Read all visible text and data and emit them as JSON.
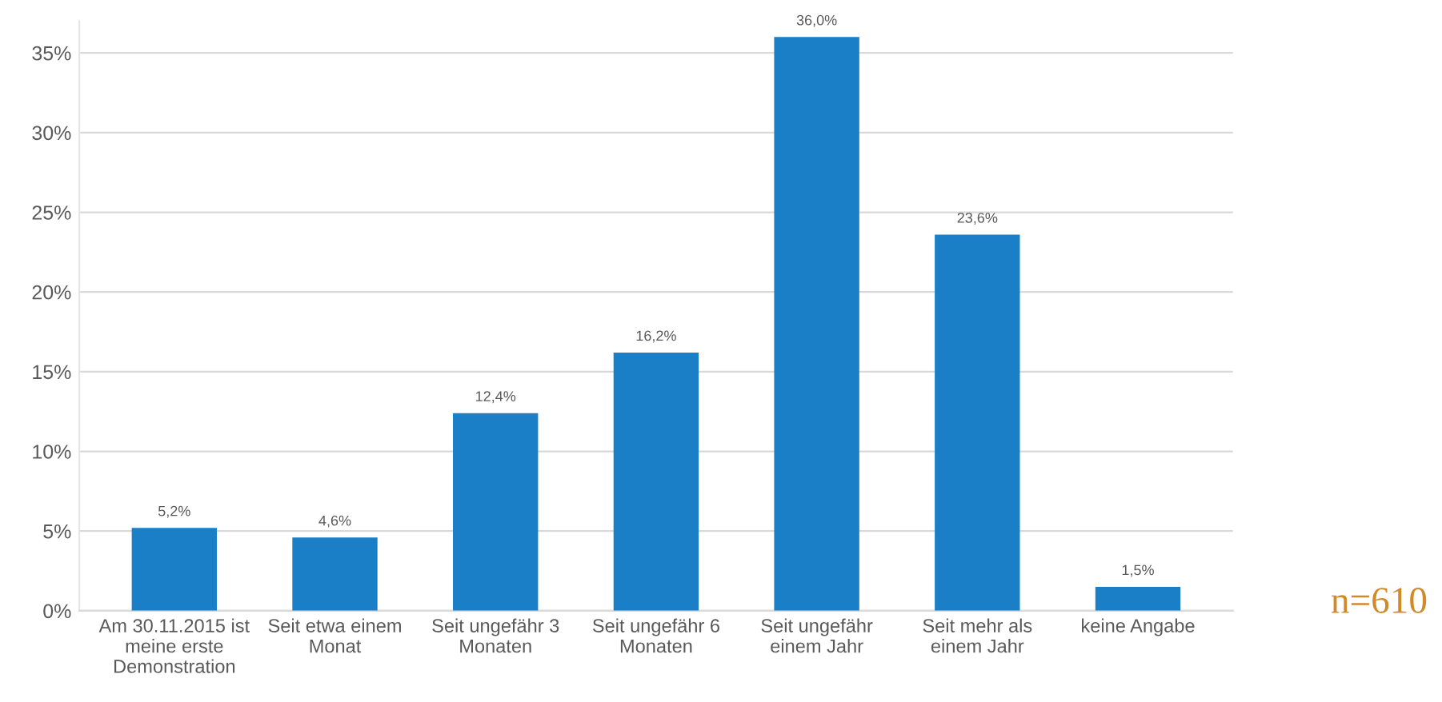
{
  "chart_data": {
    "type": "bar",
    "categories": [
      "Am 30.11.2015 ist\nmeine erste\nDemonstration",
      "Seit etwa einem\nMonat",
      "Seit ungefähr 3\nMonaten",
      "Seit ungefähr 6\nMonaten",
      "Seit ungefähr\neinem Jahr",
      "Seit mehr als\neinem Jahr",
      "keine Angabe"
    ],
    "values": [
      5.2,
      4.6,
      12.4,
      16.2,
      36.0,
      23.6,
      1.5
    ],
    "value_labels": [
      "5,2%",
      "4,6%",
      "12,4%",
      "16,2%",
      "36,0%",
      "23,6%",
      "1,5%"
    ],
    "color": "#1a7fc6",
    "ylim": [
      0,
      37
    ],
    "yticks": [
      {
        "value": 0,
        "label": "0%"
      },
      {
        "value": 5,
        "label": "5%"
      },
      {
        "value": 10,
        "label": "10%"
      },
      {
        "value": 15,
        "label": "15%"
      },
      {
        "value": 20,
        "label": "20%"
      },
      {
        "value": 25,
        "label": "25%"
      },
      {
        "value": 30,
        "label": "30%"
      },
      {
        "value": 35,
        "label": "35%"
      }
    ],
    "grid": "y",
    "annotations": [
      "n=610"
    ]
  }
}
